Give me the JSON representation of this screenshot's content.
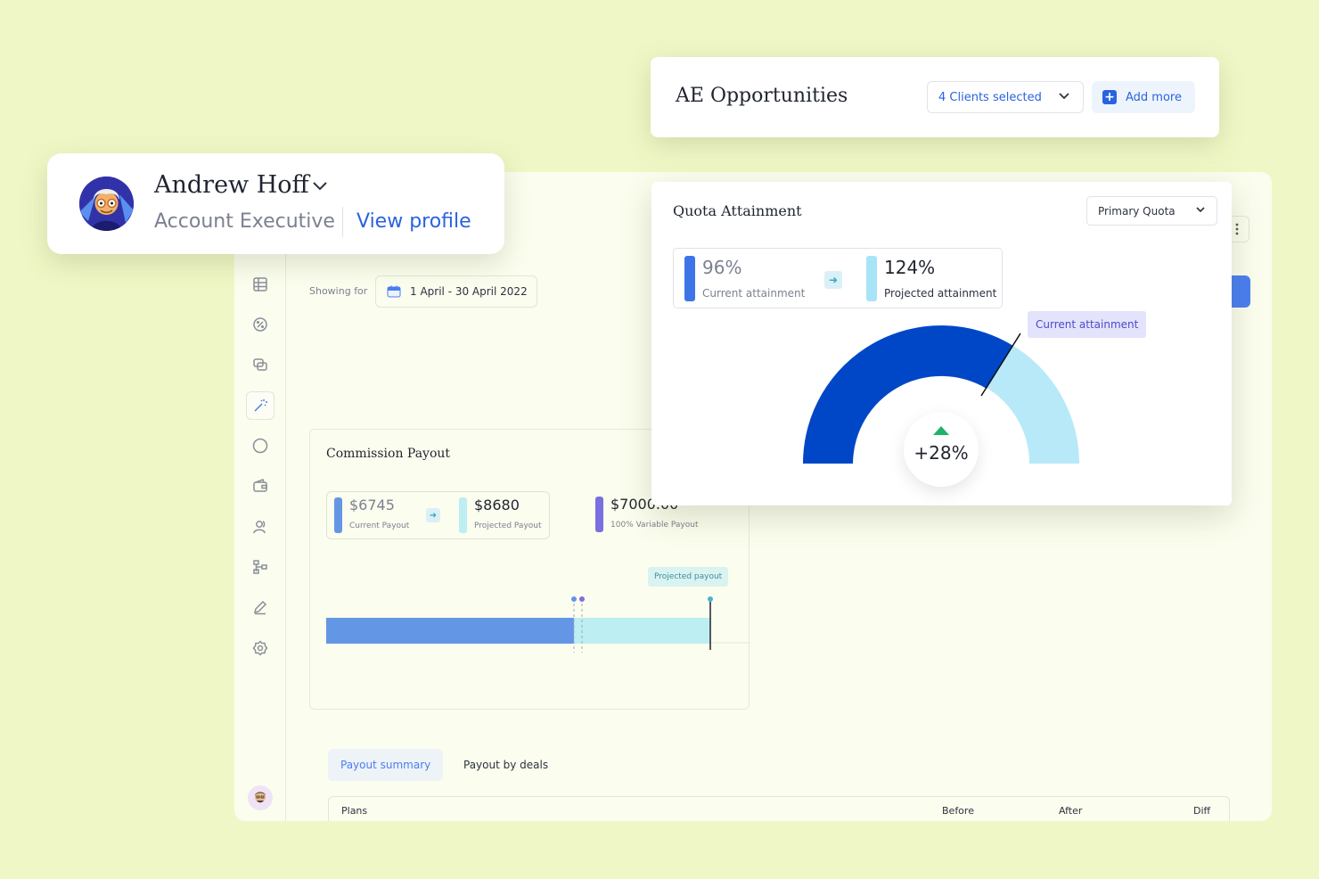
{
  "user": {
    "name": "Andrew Hoff",
    "role": "Account Executive",
    "view_profile": "View profile"
  },
  "opportunities": {
    "title": "AE Opportunities",
    "clients_selected": "4 Clients selected",
    "add_more": "Add more"
  },
  "sidebar": {
    "items": [
      "table-icon",
      "percent-icon",
      "chat-icon",
      "magic-wand-icon",
      "circle-icon",
      "wallet-icon",
      "user-icon",
      "org-chart-icon",
      "pen-icon",
      "settings-icon"
    ],
    "active_index": 3
  },
  "filter": {
    "showing_for": "Showing for",
    "date_range": "1 April - 30 April 2022"
  },
  "commission": {
    "title": "Commission Payout",
    "current_value": "$6745",
    "current_label": "Current Payout",
    "projected_value": "$8680",
    "projected_label": "Projected Payout",
    "variable_value": "$7000.00",
    "variable_label": "100% Variable Payout",
    "projected_tag": "Projected payout"
  },
  "quota": {
    "title": "Quota Attainment",
    "dropdown": "Primary Quota",
    "current_value": "96%",
    "current_label": "Current attainment",
    "projected_value": "124%",
    "projected_label": "Projected attainment",
    "current_tag": "Current attainment",
    "change": "+28%"
  },
  "tabs": {
    "summary": "Payout summary",
    "deals": "Payout by deals"
  },
  "table": {
    "columns": [
      "Plans",
      "Before",
      "After",
      "Diff"
    ]
  },
  "colors": {
    "accent": "#2a63e0",
    "gauge_current": "#0047c8",
    "gauge_projected": "#b8e9f8",
    "payout_current": "#6496e6",
    "payout_projected": "#bdeef1",
    "variable": "#7a6fe0",
    "background": "#f0f7c6"
  }
}
